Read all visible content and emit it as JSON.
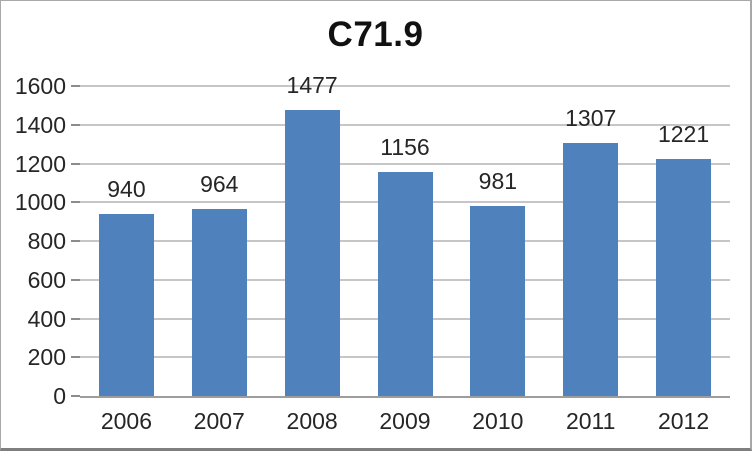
{
  "chart_data": {
    "type": "bar",
    "title": "C71.9",
    "categories": [
      "2006",
      "2007",
      "2008",
      "2009",
      "2010",
      "2011",
      "2012"
    ],
    "values": [
      940,
      964,
      1477,
      1156,
      981,
      1307,
      1221
    ],
    "xlabel": "",
    "ylabel": "",
    "ylim": [
      0,
      1600
    ],
    "ytick_step": 200,
    "yticks": [
      0,
      200,
      400,
      600,
      800,
      1000,
      1200,
      1400,
      1600
    ],
    "grid": true,
    "legend": "none",
    "data_labels": true,
    "colors": {
      "bar_fill": "#4f81bd",
      "gridline": "#c6c6c6",
      "axis_line": "#9d9d9d",
      "tick_mark": "#8c8c8c",
      "label_text": "#262626",
      "title_text": "#111111",
      "frame_border": "#a8a8a8",
      "frame_bottom_border": "#7f7f7f",
      "background": "#ffffff"
    }
  }
}
